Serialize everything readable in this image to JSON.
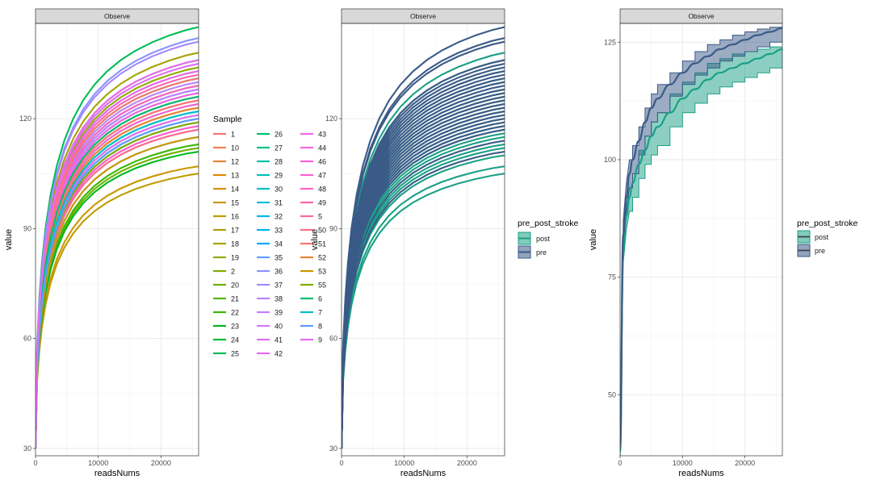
{
  "chart_data": [
    {
      "type": "line",
      "strip_label": "Observe",
      "xlabel": "readsNums",
      "ylabel": "value",
      "xlim": [
        0,
        26000
      ],
      "ylim": [
        28,
        146
      ],
      "x_ticks": [
        0,
        10000,
        20000
      ],
      "x_tick_labels": [
        "0",
        "10000",
        "20000"
      ],
      "y_ticks": [
        30,
        60,
        90,
        120
      ],
      "y_tick_labels": [
        "30",
        "60",
        "90",
        "120"
      ],
      "grid": true,
      "legend": {
        "title": "Sample",
        "placement": "right",
        "entries": [
          "1",
          "10",
          "12",
          "13",
          "14",
          "15",
          "16",
          "17",
          "18",
          "19",
          "2",
          "20",
          "21",
          "22",
          "23",
          "24",
          "25",
          "26",
          "27",
          "28",
          "29",
          "30",
          "31",
          "32",
          "33",
          "34",
          "35",
          "36",
          "37",
          "38",
          "39",
          "40",
          "41",
          "42",
          "43",
          "44",
          "46",
          "47",
          "48",
          "49",
          "5",
          "50",
          "51",
          "52",
          "53",
          "55",
          "6",
          "7",
          "8",
          "9"
        ],
        "colors": [
          "#F8766D",
          "#F27D52",
          "#EA8331",
          "#E38900",
          "#D89000",
          "#CC9600",
          "#BF9C00",
          "#B09F00",
          "#A3A500",
          "#93AA00",
          "#82AD00",
          "#6FB100",
          "#58B500",
          "#39B600",
          "#00B81F",
          "#00BA38",
          "#00BC56",
          "#00BE70",
          "#00C08B",
          "#00C1A3",
          "#00C0B8",
          "#00BFC4",
          "#00BCD8",
          "#00B8E7",
          "#00B2F3",
          "#00A9FF",
          "#619CFF",
          "#8B93FF",
          "#A58AFF",
          "#B983FF",
          "#C77CFF",
          "#D575FE",
          "#E06CF3",
          "#E76BF3",
          "#EF67EB",
          "#F564E3",
          "#FA62D2",
          "#FD61D1",
          "#FF61C3",
          "#FF64B0",
          "#FF689A",
          "#FC717F",
          "#F8766D",
          "#EA8331",
          "#CC9600",
          "#82AD00",
          "#00BE70",
          "#00BFC4",
          "#619CFF",
          "#E76BF3"
        ]
      },
      "x": [
        0,
        260,
        600,
        1000,
        1600,
        2400,
        3400,
        4600,
        6000,
        7600,
        9400,
        11400,
        13600,
        16000,
        18600,
        21400,
        24000,
        26000
      ],
      "series": [
        {
          "name": "1",
          "plateau": 118,
          "color": "#F8766D"
        },
        {
          "name": "10",
          "plateau": 126,
          "color": "#F27D52"
        },
        {
          "name": "12",
          "plateau": 119,
          "color": "#EA8331"
        },
        {
          "name": "13",
          "plateau": 125,
          "color": "#E38900"
        },
        {
          "name": "14",
          "plateau": 120,
          "color": "#D89000"
        },
        {
          "name": "15",
          "plateau": 107,
          "color": "#CC9600"
        },
        {
          "name": "16",
          "plateau": 105,
          "color": "#BF9C00"
        },
        {
          "name": "17",
          "plateau": 117,
          "color": "#B09F00"
        },
        {
          "name": "18",
          "plateau": 138,
          "color": "#A3A500"
        },
        {
          "name": "19",
          "plateau": 134,
          "color": "#93AA00"
        },
        {
          "name": "2",
          "plateau": 123,
          "color": "#82AD00"
        },
        {
          "name": "20",
          "plateau": 112,
          "color": "#6FB100"
        },
        {
          "name": "21",
          "plateau": 136,
          "color": "#58B500"
        },
        {
          "name": "22",
          "plateau": 113,
          "color": "#39B600"
        },
        {
          "name": "23",
          "plateau": 111,
          "color": "#00B81F"
        },
        {
          "name": "24",
          "plateau": 129,
          "color": "#00BA38"
        },
        {
          "name": "25",
          "plateau": 145,
          "color": "#00BC56"
        },
        {
          "name": "26",
          "plateau": 131,
          "color": "#00BE70"
        },
        {
          "name": "27",
          "plateau": 127,
          "color": "#00C08B"
        },
        {
          "name": "28",
          "plateau": 121,
          "color": "#00C1A3"
        },
        {
          "name": "29",
          "plateau": 133,
          "color": "#00C0B8"
        },
        {
          "name": "30",
          "plateau": 128,
          "color": "#00BFC4"
        },
        {
          "name": "31",
          "plateau": 124,
          "color": "#00BCD8"
        },
        {
          "name": "32",
          "plateau": 122,
          "color": "#00B8E7"
        },
        {
          "name": "33",
          "plateau": 120,
          "color": "#00B2F3"
        },
        {
          "name": "34",
          "plateau": 119,
          "color": "#00A9FF"
        },
        {
          "name": "35",
          "plateau": 115,
          "color": "#619CFF"
        },
        {
          "name": "36",
          "plateau": 142,
          "color": "#8B93FF"
        },
        {
          "name": "37",
          "plateau": 141,
          "color": "#A58AFF"
        },
        {
          "name": "38",
          "plateau": 130,
          "color": "#B983FF"
        },
        {
          "name": "39",
          "plateau": 128,
          "color": "#C77CFF"
        },
        {
          "name": "40",
          "plateau": 126,
          "color": "#D575FE"
        },
        {
          "name": "41",
          "plateau": 135,
          "color": "#E06CF3"
        },
        {
          "name": "42",
          "plateau": 121,
          "color": "#E76BF3"
        },
        {
          "name": "43",
          "plateau": 133,
          "color": "#EF67EB"
        },
        {
          "name": "44",
          "plateau": 127,
          "color": "#F564E3"
        },
        {
          "name": "46",
          "plateau": 124,
          "color": "#FA62D2"
        },
        {
          "name": "47",
          "plateau": 118,
          "color": "#FD61D1"
        },
        {
          "name": "48",
          "plateau": 129,
          "color": "#FF61C3"
        },
        {
          "name": "49",
          "plateau": 132,
          "color": "#FF64B0"
        },
        {
          "name": "5",
          "plateau": 117,
          "color": "#FF689A"
        },
        {
          "name": "50",
          "plateau": 125,
          "color": "#FC717F"
        },
        {
          "name": "51",
          "plateau": 131,
          "color": "#F8766D"
        },
        {
          "name": "52",
          "plateau": 123,
          "color": "#EA8331"
        },
        {
          "name": "53",
          "plateau": 115,
          "color": "#CC9600"
        },
        {
          "name": "55",
          "plateau": 119,
          "color": "#82AD00"
        },
        {
          "name": "6",
          "plateau": 126,
          "color": "#00BE70"
        },
        {
          "name": "7",
          "plateau": 122,
          "color": "#00BFC4"
        },
        {
          "name": "8",
          "plateau": 120,
          "color": "#619CFF"
        },
        {
          "name": "9",
          "plateau": 136,
          "color": "#E76BF3"
        }
      ]
    },
    {
      "type": "line",
      "strip_label": "Observe",
      "xlabel": "readsNums",
      "ylabel": "value",
      "xlim": [
        0,
        26000
      ],
      "ylim": [
        28,
        146
      ],
      "x_ticks": [
        0,
        10000,
        20000
      ],
      "x_tick_labels": [
        "0",
        "10000",
        "20000"
      ],
      "y_ticks": [
        30,
        60,
        90,
        120
      ],
      "y_tick_labels": [
        "30",
        "60",
        "90",
        "120"
      ],
      "grid": true,
      "legend": {
        "title": "pre_post_stroke",
        "placement": "right",
        "entries": [
          "post",
          "pre"
        ],
        "colors": [
          "#1AA085",
          "#3A5A87"
        ]
      },
      "groups": {
        "post": [
          107,
          105,
          110,
          112,
          113,
          115,
          116,
          117,
          118,
          119,
          120,
          121,
          122,
          123,
          124,
          125,
          126,
          127,
          128,
          130,
          131,
          133,
          136,
          138
        ],
        "pre": [
          111,
          114,
          117,
          118,
          119,
          120,
          121,
          122,
          123,
          124,
          125,
          126,
          127,
          128,
          129,
          130,
          131,
          132,
          133,
          134,
          135,
          136,
          141,
          142,
          145
        ]
      }
    },
    {
      "type": "area",
      "strip_label": "Observe",
      "xlabel": "readsNums",
      "ylabel": "value",
      "xlim": [
        0,
        26000
      ],
      "ylim": [
        37,
        129
      ],
      "x_ticks": [
        0,
        10000,
        20000
      ],
      "x_tick_labels": [
        "0",
        "10000",
        "20000"
      ],
      "y_ticks": [
        50,
        75,
        100,
        125
      ],
      "y_tick_labels": [
        "50",
        "75",
        "100",
        "125"
      ],
      "grid": true,
      "legend": {
        "title": "pre_post_stroke",
        "placement": "right",
        "entries": [
          "post",
          "pre"
        ],
        "colors": [
          "#1AA085",
          "#3A5A87"
        ]
      },
      "x": [
        0,
        500,
        1000,
        1500,
        2000,
        3000,
        4000,
        5000,
        6000,
        8000,
        10000,
        12000,
        14000,
        16000,
        18000,
        20000,
        22000,
        24000,
        26000
      ],
      "series": [
        {
          "name": "post",
          "mean": [
            38,
            80,
            88,
            92,
            95,
            99,
            102,
            105,
            107,
            110,
            113,
            115,
            117,
            118.5,
            119.5,
            120.5,
            121.5,
            122.5,
            123.5
          ],
          "lower": [
            36,
            78,
            85,
            89,
            92,
            96,
            99,
            101,
            103,
            107,
            110,
            112,
            114,
            115.5,
            116.5,
            117.5,
            118.5,
            119.5,
            120.5
          ],
          "upper": [
            40,
            82,
            90,
            94,
            97,
            102,
            105,
            108,
            110,
            114,
            116.5,
            118.5,
            120.5,
            121.5,
            122.5,
            123,
            123.5,
            124,
            124
          ]
        },
        {
          "name": "pre",
          "mean": [
            39,
            84,
            92,
            97,
            100,
            104,
            108,
            111,
            113,
            116,
            118.5,
            120.5,
            122,
            123.5,
            124.5,
            125.5,
            126.5,
            127.2,
            128
          ],
          "lower": [
            37,
            81,
            89,
            94,
            97,
            101,
            105,
            108,
            110,
            113.5,
            116,
            118,
            119.5,
            121,
            122,
            123,
            124,
            125,
            125.5
          ],
          "upper": [
            41,
            87,
            95,
            100,
            103,
            107,
            111,
            114,
            116,
            118.5,
            121,
            123,
            124.5,
            125.5,
            126.5,
            127.2,
            127.8,
            128.2,
            128.8
          ]
        }
      ]
    }
  ]
}
